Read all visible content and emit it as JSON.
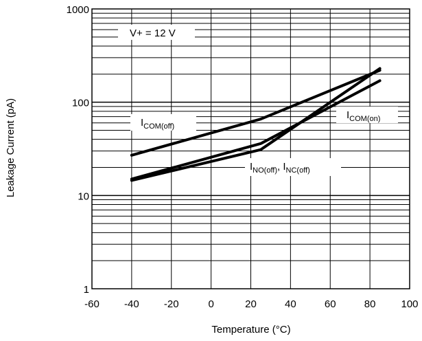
{
  "chart_data": {
    "type": "line",
    "xlabel": "Temperature (°C)",
    "ylabel": "Leakage Current (pA)",
    "xlim": [
      -60,
      100
    ],
    "ylim": [
      1,
      1000
    ],
    "yscale": "log",
    "grid": true,
    "x_ticks": [
      "-60",
      "-40",
      "-20",
      "0",
      "20",
      "40",
      "60",
      "80",
      "100"
    ],
    "y_ticks": [
      "1",
      "10",
      "100",
      "1000"
    ],
    "condition": "V+ = 12 V",
    "series": [
      {
        "name": "ICOM(off)",
        "x": [
          -40,
          25,
          85
        ],
        "y": [
          27,
          66,
          220
        ]
      },
      {
        "name": "ICOM(on)",
        "x": [
          -40,
          25,
          85
        ],
        "y": [
          15,
          36,
          170
        ]
      },
      {
        "name": "INO(off), INC(off)",
        "x": [
          -40,
          25,
          85
        ],
        "y": [
          14.5,
          31,
          230
        ]
      }
    ],
    "annotations": {
      "com_off": {
        "main": "I",
        "sub": "COM(off)"
      },
      "com_on": {
        "main": "I",
        "sub": "COM(on)"
      },
      "no_nc_off": {
        "main1": "I",
        "sub1": "NO(off)",
        "sep": ", ",
        "main2": "I",
        "sub2": "NC(off)"
      }
    }
  }
}
